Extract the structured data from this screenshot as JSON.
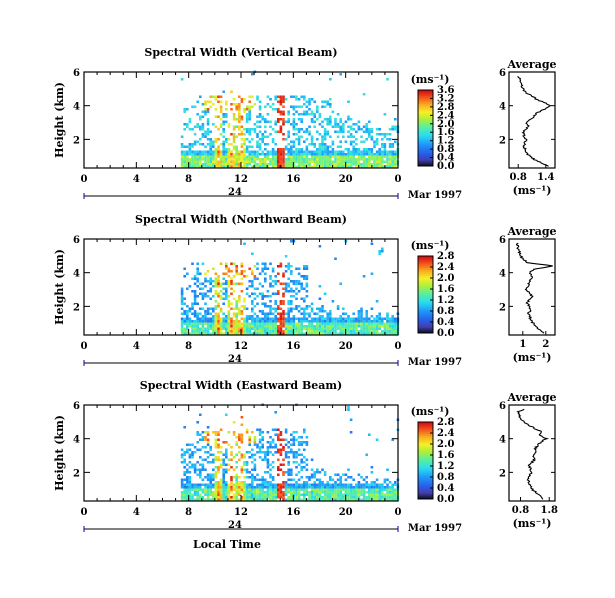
{
  "shared": {
    "date_label": "Mar 1997",
    "x_label": "Local Time",
    "y_label": "Height (km)",
    "unit_label": "(ms⁻¹)",
    "average_title": "Average",
    "x_ticks": [
      "0",
      "4",
      "8",
      "12",
      "16",
      "20",
      "0"
    ],
    "y_ticks": [
      "6",
      "4",
      "2"
    ],
    "day_marker": "24"
  },
  "chart_data": [
    {
      "type": "heatmap",
      "title": "Spectral Width (Vertical Beam)",
      "xlabel": "",
      "ylabel": "Height (km)",
      "x_range_hours": [
        0,
        24
      ],
      "y_range_km": [
        0.3,
        6.0
      ],
      "colorbar": {
        "label": "(ms⁻¹)",
        "ticks": [
          "0.0",
          "0.4",
          "0.8",
          "1.2",
          "1.6",
          "2.0",
          "2.4",
          "2.8",
          "3.2",
          "3.6"
        ],
        "range": [
          0,
          3.6
        ]
      },
      "average_profile": {
        "type": "line",
        "title": "Average",
        "xlabel": "(ms⁻¹)",
        "x_ticks": [
          "0.8",
          "1.4"
        ],
        "xlim": [
          0.6,
          1.6
        ],
        "ylim": [
          0.3,
          6.0
        ],
        "height_km": [
          0.4,
          0.6,
          0.8,
          1.0,
          1.2,
          1.4,
          1.6,
          1.8,
          2.0,
          2.2,
          2.4,
          2.6,
          2.8,
          3.0,
          3.2,
          3.4,
          3.6,
          3.8,
          4.0,
          4.2,
          4.4,
          4.6,
          4.8,
          5.0,
          5.2,
          5.4,
          5.6,
          5.8
        ],
        "width_ms": [
          1.45,
          1.3,
          1.15,
          1.05,
          0.98,
          0.95,
          0.92,
          0.94,
          0.97,
          0.93,
          0.91,
          0.96,
          1.02,
          0.98,
          1.08,
          1.15,
          1.22,
          1.38,
          1.5,
          1.35,
          1.18,
          1.1,
          0.95,
          0.9,
          0.88,
          0.85,
          0.84,
          0.8
        ]
      }
    },
    {
      "type": "heatmap",
      "title": "Spectral Width (Northward Beam)",
      "xlabel": "",
      "ylabel": "Height (km)",
      "x_range_hours": [
        0,
        24
      ],
      "y_range_km": [
        0.3,
        6.0
      ],
      "colorbar": {
        "label": "(ms⁻¹)",
        "ticks": [
          "0.0",
          "0.4",
          "0.8",
          "1.2",
          "1.6",
          "2.0",
          "2.4",
          "2.8"
        ],
        "range": [
          0,
          2.8
        ]
      },
      "average_profile": {
        "type": "line",
        "title": "Average",
        "xlabel": "(ms⁻¹)",
        "x_ticks": [
          "1",
          "2"
        ],
        "xlim": [
          0.4,
          2.4
        ],
        "ylim": [
          0.3,
          6.0
        ],
        "height_km": [
          0.4,
          0.6,
          0.8,
          1.0,
          1.2,
          1.4,
          1.6,
          1.8,
          2.0,
          2.2,
          2.4,
          2.6,
          2.8,
          3.0,
          3.2,
          3.4,
          3.6,
          3.8,
          4.0,
          4.2,
          4.4,
          4.6,
          4.8,
          5.0,
          5.2,
          5.4,
          5.6,
          5.8
        ],
        "width_ms": [
          1.9,
          1.75,
          1.6,
          1.45,
          1.35,
          1.3,
          1.25,
          1.35,
          1.3,
          1.2,
          1.25,
          1.4,
          1.3,
          1.15,
          1.2,
          1.3,
          1.35,
          1.4,
          1.3,
          1.5,
          2.3,
          1.2,
          1.0,
          0.9,
          0.85,
          0.8,
          0.78,
          0.75
        ]
      }
    },
    {
      "type": "heatmap",
      "title": "Spectral Width (Eastward Beam)",
      "xlabel": "Local Time",
      "ylabel": "Height (km)",
      "x_range_hours": [
        0,
        24
      ],
      "y_range_km": [
        0.3,
        6.0
      ],
      "colorbar": {
        "label": "(ms⁻¹)",
        "ticks": [
          "0.0",
          "0.4",
          "0.8",
          "1.2",
          "1.6",
          "2.0",
          "2.4",
          "2.8"
        ],
        "range": [
          0,
          2.8
        ]
      },
      "average_profile": {
        "type": "line",
        "title": "Average",
        "xlabel": "(ms⁻¹)",
        "x_ticks": [
          "0.8",
          "1.8"
        ],
        "xlim": [
          0.4,
          2.0
        ],
        "ylim": [
          0.3,
          6.0
        ],
        "height_km": [
          0.4,
          0.6,
          0.8,
          1.0,
          1.2,
          1.4,
          1.6,
          1.8,
          2.0,
          2.2,
          2.4,
          2.6,
          2.8,
          3.0,
          3.2,
          3.4,
          3.6,
          3.8,
          4.0,
          4.2,
          4.4,
          4.6,
          4.8,
          5.0,
          5.2,
          5.4,
          5.6,
          5.8
        ],
        "width_ms": [
          1.6,
          1.5,
          1.35,
          1.2,
          1.15,
          1.1,
          1.05,
          1.1,
          1.2,
          1.15,
          1.1,
          1.2,
          1.3,
          1.25,
          1.35,
          1.3,
          1.4,
          1.5,
          1.7,
          1.45,
          1.55,
          1.3,
          1.1,
          0.9,
          0.8,
          0.75,
          0.7,
          1.0
        ]
      }
    }
  ]
}
